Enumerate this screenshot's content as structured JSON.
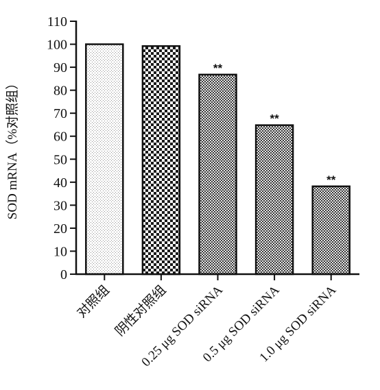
{
  "chart_data": {
    "type": "bar",
    "title": "",
    "xlabel": "",
    "ylabel": "SOD mRNA（%对照组）",
    "ylim": [
      0,
      110
    ],
    "yticks": [
      0,
      10,
      20,
      30,
      40,
      50,
      60,
      70,
      80,
      90,
      100,
      110
    ],
    "categories": [
      "对照组",
      "阴性对照组",
      "0.25 μg SOD siRNA",
      "0.5 μg SOD siRNA",
      "1.0 μg SOD siRNA"
    ],
    "values": [
      100,
      99.2,
      86.8,
      64.8,
      38.2
    ],
    "annotations": [
      "",
      "",
      "**",
      "**",
      "**"
    ],
    "patterns": [
      "dots-light",
      "checker-coarse",
      "checker-fine",
      "checker-fine",
      "checker-fine"
    ],
    "grid": false,
    "legend": "none"
  }
}
